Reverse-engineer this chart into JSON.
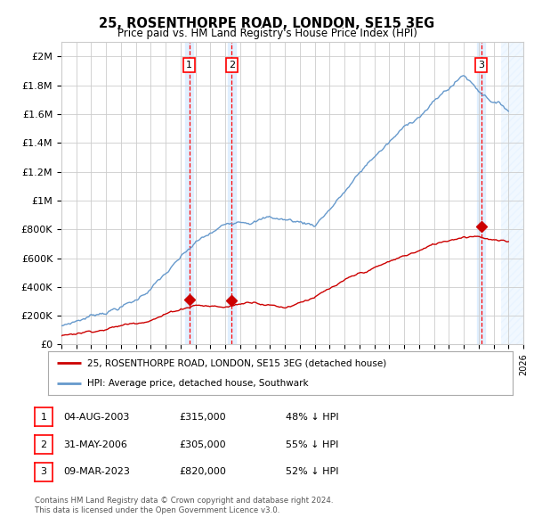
{
  "title1": "25, ROSENTHORPE ROAD, LONDON, SE15 3EG",
  "title2": "Price paid vs. HM Land Registry's House Price Index (HPI)",
  "ylabel_ticks": [
    "£0",
    "£200K",
    "£400K",
    "£600K",
    "£800K",
    "£1M",
    "£1.2M",
    "£1.4M",
    "£1.6M",
    "£1.8M",
    "£2M"
  ],
  "ytick_values": [
    0,
    200000,
    400000,
    600000,
    800000,
    1000000,
    1200000,
    1400000,
    1600000,
    1800000,
    2000000
  ],
  "ylim": [
    0,
    2100000
  ],
  "xlim_start": 1995.0,
  "xlim_end": 2026.0,
  "sales": [
    {
      "date_num": 2003.58,
      "price": 315000,
      "label": "1"
    },
    {
      "date_num": 2006.42,
      "price": 305000,
      "label": "2"
    },
    {
      "date_num": 2023.18,
      "price": 820000,
      "label": "3"
    }
  ],
  "legend_property_label": "25, ROSENTHORPE ROAD, LONDON, SE15 3EG (detached house)",
  "legend_hpi_label": "HPI: Average price, detached house, Southwark",
  "table_rows": [
    {
      "num": "1",
      "date": "04-AUG-2003",
      "price": "£315,000",
      "pct": "48% ↓ HPI"
    },
    {
      "num": "2",
      "date": "31-MAY-2006",
      "price": "£305,000",
      "pct": "55% ↓ HPI"
    },
    {
      "num": "3",
      "date": "09-MAR-2023",
      "price": "£820,000",
      "pct": "52% ↓ HPI"
    }
  ],
  "footnote1": "Contains HM Land Registry data © Crown copyright and database right 2024.",
  "footnote2": "This data is licensed under the Open Government Licence v3.0.",
  "property_color": "#cc0000",
  "hpi_color": "#6699cc",
  "shade_color": "#ddeeff",
  "grid_color": "#cccccc",
  "background_color": "#ffffff"
}
